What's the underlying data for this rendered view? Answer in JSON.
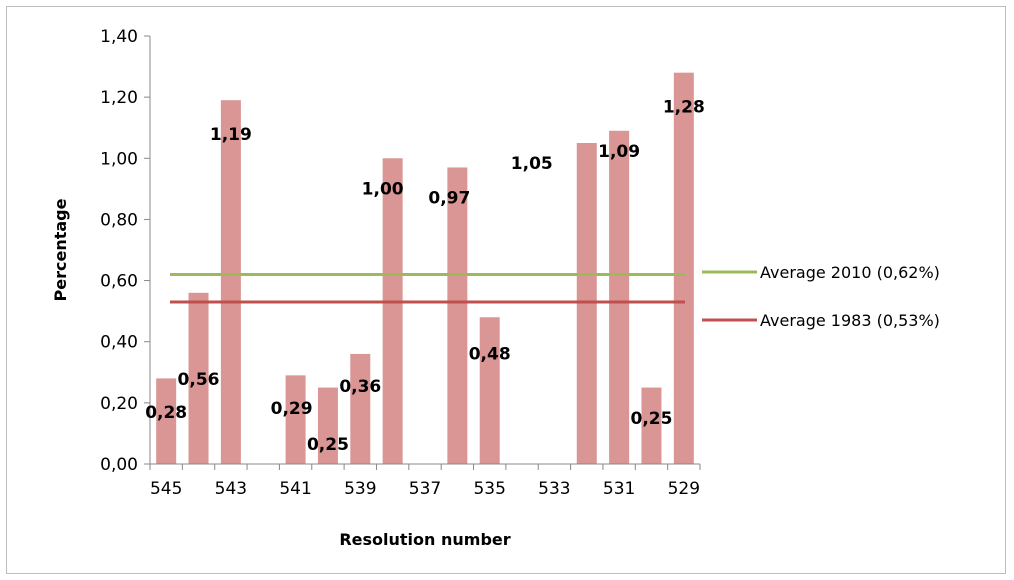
{
  "chart_data": {
    "type": "bar",
    "xlabel": "Resolution number",
    "ylabel": "Percentage",
    "ylim": [
      0,
      1.4
    ],
    "yticks": [
      "0,00",
      "0,20",
      "0,40",
      "0,60",
      "0,80",
      "1,00",
      "1,20",
      "1,40"
    ],
    "grid": false,
    "legend_position": "right",
    "x_tick_labels": [
      "545",
      "543",
      "541",
      "539",
      "537",
      "535",
      "533",
      "531",
      "529"
    ],
    "categories": [
      545,
      544,
      543,
      542,
      541,
      540,
      539,
      538,
      537,
      536,
      535,
      534,
      533,
      532,
      531,
      530,
      529
    ],
    "series": [
      {
        "type": "bar",
        "color": "#d99694",
        "values": [
          0.28,
          0.56,
          1.19,
          null,
          0.29,
          0.25,
          0.36,
          1.0,
          null,
          0.97,
          0.48,
          null,
          null,
          1.05,
          1.09,
          0.25,
          1.28
        ],
        "labels": [
          "0,28",
          "0,56",
          "1,19",
          "",
          "0,29",
          "0,25",
          "0,36",
          "1,00",
          "",
          "0,97",
          "0,48",
          "",
          "",
          "1,05",
          "1,09",
          "0,25",
          "1,28"
        ]
      }
    ],
    "reference_lines": [
      {
        "name": "Average 2010 (0,62%)",
        "value": 0.62,
        "color": "#9bbb59"
      },
      {
        "name": "Average 1983 (0,53%)",
        "value": 0.53,
        "color": "#c0504d"
      }
    ]
  }
}
